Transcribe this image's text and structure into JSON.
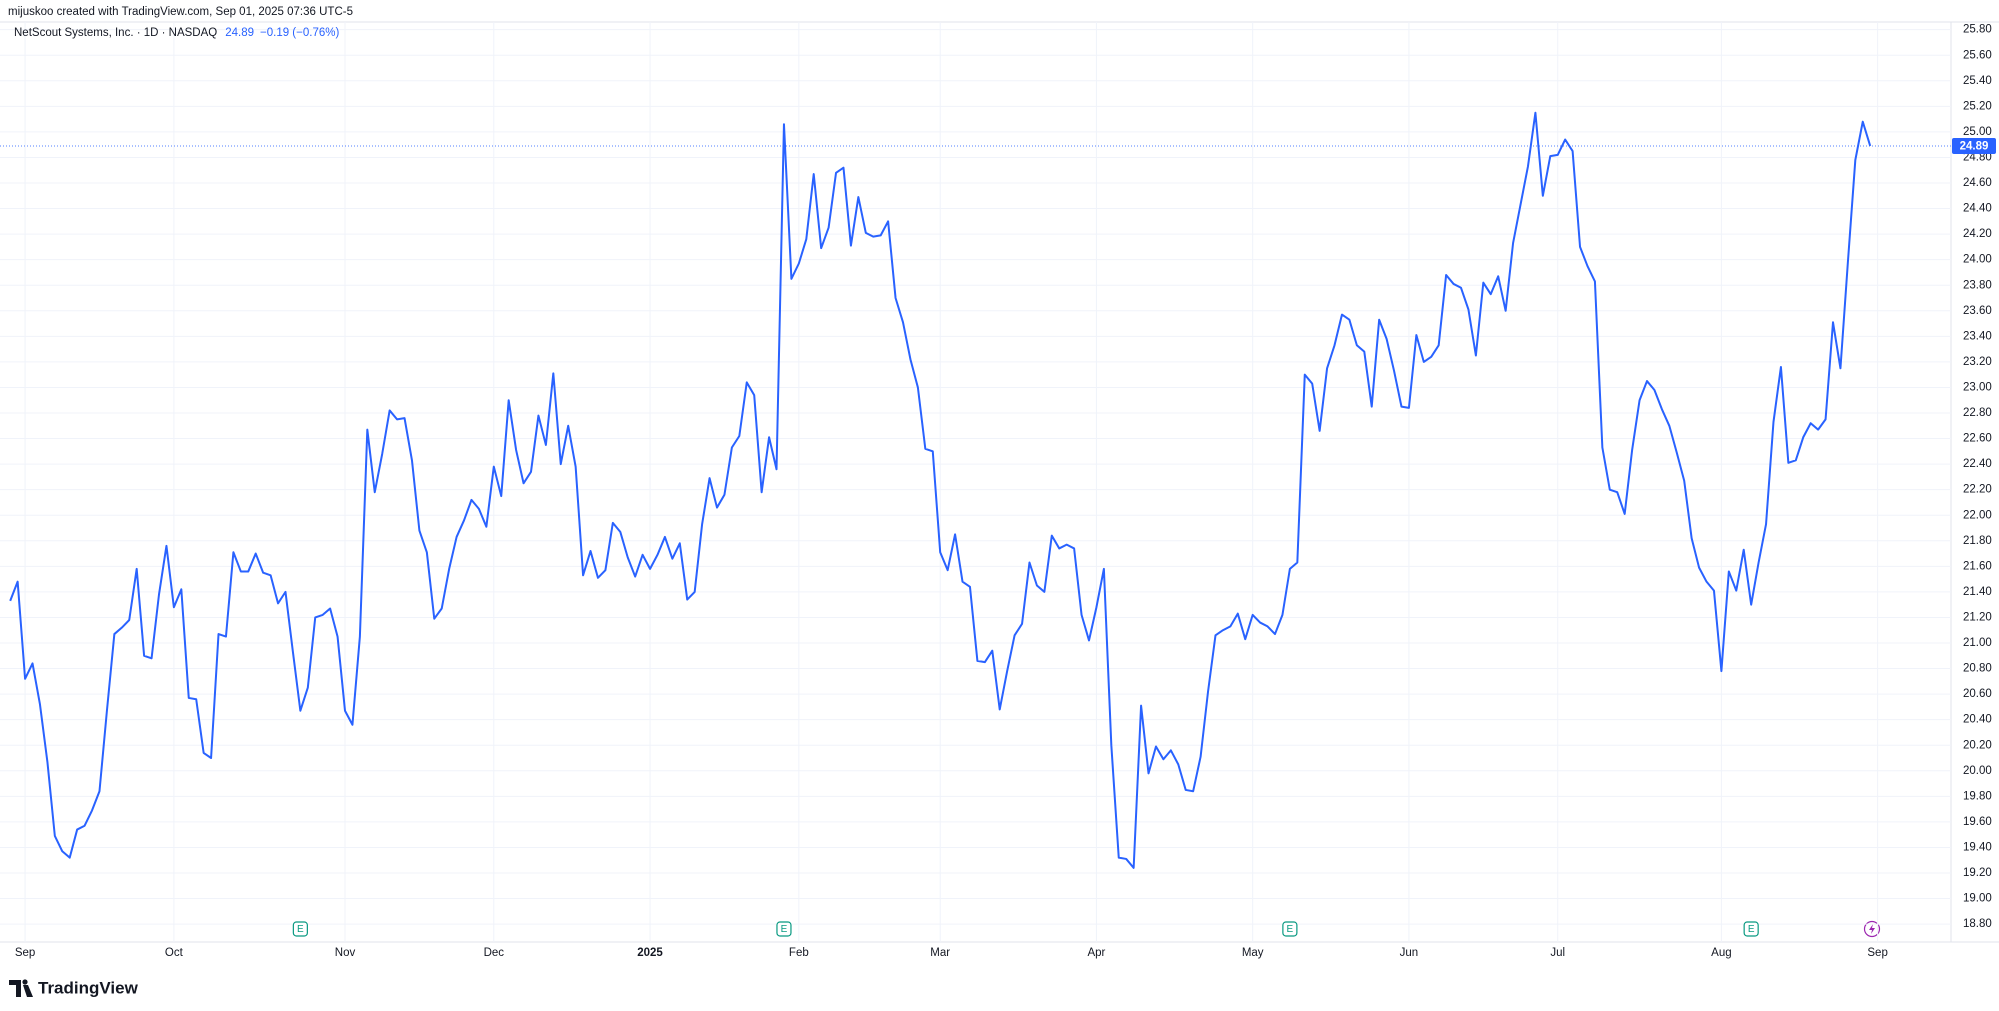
{
  "header": "mijuskoo created with TradingView.com, Sep 01, 2025 07:36 UTC-5",
  "watermark": "TradingView",
  "chart_data": {
    "type": "line",
    "legend_title": "NetScout Systems, Inc. · 1D · NASDAQ",
    "change_label": "−0.19 (−0.76%)",
    "categories": [
      null,
      null,
      "Sep",
      null,
      null,
      null,
      null,
      null,
      null,
      null,
      null,
      null,
      null,
      null,
      null,
      null,
      null,
      null,
      null,
      null,
      null,
      null,
      "Oct",
      null,
      null,
      null,
      null,
      null,
      null,
      null,
      null,
      null,
      null,
      null,
      null,
      null,
      null,
      null,
      null,
      null,
      null,
      null,
      null,
      null,
      null,
      "Nov",
      null,
      null,
      null,
      null,
      null,
      null,
      null,
      null,
      null,
      null,
      null,
      null,
      null,
      null,
      null,
      null,
      null,
      null,
      null,
      "Dec",
      null,
      null,
      null,
      null,
      null,
      null,
      null,
      null,
      null,
      null,
      null,
      null,
      null,
      null,
      null,
      null,
      null,
      null,
      null,
      null,
      "2025",
      null,
      null,
      null,
      null,
      null,
      null,
      null,
      null,
      null,
      null,
      null,
      null,
      null,
      null,
      null,
      null,
      null,
      null,
      null,
      "Feb",
      null,
      null,
      null,
      null,
      null,
      null,
      null,
      null,
      null,
      null,
      null,
      null,
      null,
      null,
      null,
      null,
      null,
      null,
      "Mar",
      null,
      null,
      null,
      null,
      null,
      null,
      null,
      null,
      null,
      null,
      null,
      null,
      null,
      null,
      null,
      null,
      null,
      null,
      null,
      null,
      "Apr",
      null,
      null,
      null,
      null,
      null,
      null,
      null,
      null,
      null,
      null,
      null,
      null,
      null,
      null,
      null,
      null,
      null,
      null,
      null,
      null,
      "May",
      null,
      null,
      null,
      null,
      null,
      null,
      null,
      null,
      null,
      null,
      null,
      null,
      null,
      null,
      null,
      null,
      null,
      null,
      null,
      null,
      "Jun",
      null,
      null,
      null,
      null,
      null,
      null,
      null,
      null,
      null,
      null,
      null,
      null,
      null,
      null,
      null,
      null,
      null,
      null,
      null,
      "Jul",
      null,
      null,
      null,
      null,
      null,
      null,
      null,
      null,
      null,
      null,
      null,
      null,
      null,
      null,
      null,
      null,
      null,
      null,
      null,
      null,
      null,
      "Aug",
      null,
      null,
      null,
      null,
      null,
      null,
      null,
      null,
      null,
      null,
      null,
      null,
      null,
      null,
      null,
      null,
      null,
      null,
      null,
      null,
      "Sep"
    ],
    "series": [
      {
        "name": "NetScout Systems, Inc.",
        "color": "#2962ff",
        "values": [
          21.33,
          21.48,
          20.72,
          20.84,
          20.52,
          20.07,
          19.49,
          19.37,
          19.32,
          19.54,
          19.57,
          19.69,
          19.84,
          20.47,
          21.07,
          21.12,
          21.18,
          21.58,
          20.9,
          20.88,
          21.38,
          21.76,
          21.28,
          21.42,
          20.57,
          20.56,
          20.14,
          20.1,
          21.07,
          21.05,
          21.71,
          21.56,
          21.56,
          21.7,
          21.55,
          21.53,
          21.31,
          21.4,
          20.93,
          20.47,
          20.65,
          21.2,
          21.22,
          21.27,
          21.05,
          20.47,
          20.36,
          21.05,
          22.67,
          22.18,
          22.48,
          22.82,
          22.75,
          22.76,
          22.43,
          21.88,
          21.71,
          21.19,
          21.27,
          21.58,
          21.83,
          21.96,
          22.12,
          22.05,
          21.91,
          22.38,
          22.15,
          22.9,
          22.51,
          22.25,
          22.34,
          22.78,
          22.55,
          23.11,
          22.4,
          22.7,
          22.38,
          21.53,
          21.72,
          21.51,
          21.57,
          21.94,
          21.87,
          21.67,
          21.52,
          21.69,
          21.58,
          21.69,
          21.83,
          21.66,
          21.78,
          21.34,
          21.4,
          21.93,
          22.29,
          22.06,
          22.16,
          22.53,
          22.62,
          23.04,
          22.94,
          22.18,
          22.61,
          22.36,
          25.06,
          23.85,
          23.97,
          24.16,
          24.67,
          24.09,
          24.25,
          24.68,
          24.72,
          24.11,
          24.49,
          24.21,
          24.18,
          24.19,
          24.3,
          23.7,
          23.51,
          23.22,
          23.0,
          22.52,
          22.5,
          21.71,
          21.57,
          21.85,
          21.48,
          21.44,
          20.86,
          20.85,
          20.94,
          20.48,
          20.78,
          21.06,
          21.15,
          21.63,
          21.45,
          21.4,
          21.84,
          21.74,
          21.77,
          21.74,
          21.22,
          21.02,
          21.28,
          21.58,
          20.2,
          19.32,
          19.31,
          19.24,
          20.51,
          19.98,
          20.19,
          20.09,
          20.16,
          20.05,
          19.85,
          19.84,
          20.11,
          20.62,
          21.06,
          21.1,
          21.13,
          21.23,
          21.03,
          21.22,
          21.16,
          21.13,
          21.07,
          21.22,
          21.58,
          21.63,
          23.1,
          23.03,
          22.66,
          23.15,
          23.33,
          23.57,
          23.53,
          23.33,
          23.28,
          22.85,
          23.53,
          23.38,
          23.13,
          22.85,
          22.84,
          23.41,
          23.2,
          23.24,
          23.33,
          23.88,
          23.81,
          23.78,
          23.61,
          23.25,
          23.82,
          23.73,
          23.87,
          23.6,
          24.13,
          24.43,
          24.73,
          25.15,
          24.5,
          24.81,
          24.82,
          24.94,
          24.85,
          24.1,
          23.95,
          23.83,
          22.53,
          22.2,
          22.18,
          22.01,
          22.51,
          22.9,
          23.05,
          22.98,
          22.83,
          22.7,
          22.49,
          22.27,
          21.82,
          21.59,
          21.48,
          21.41,
          20.78,
          21.56,
          21.41,
          21.73,
          21.3,
          21.63,
          21.93,
          22.73,
          23.16,
          22.41,
          22.43,
          22.61,
          22.72,
          22.67,
          22.75,
          23.51,
          23.15,
          23.98,
          24.78,
          25.08,
          24.89,
          null
        ]
      }
    ],
    "ylim": [
      18.66,
      25.86
    ],
    "yticks": [
      {
        "value": 18.8,
        "label": "18.80"
      },
      {
        "value": 19,
        "label": "19.00"
      },
      {
        "value": 19.2,
        "label": "19.20"
      },
      {
        "value": 19.4,
        "label": "19.40"
      },
      {
        "value": 19.6,
        "label": "19.60"
      },
      {
        "value": 19.8,
        "label": "19.80"
      },
      {
        "value": 20,
        "label": "20.00"
      },
      {
        "value": 20.2,
        "label": "20.20"
      },
      {
        "value": 20.4,
        "label": "20.40"
      },
      {
        "value": 20.6,
        "label": "20.60"
      },
      {
        "value": 20.8,
        "label": "20.80"
      },
      {
        "value": 21,
        "label": "21.00"
      },
      {
        "value": 21.2,
        "label": "21.20"
      },
      {
        "value": 21.4,
        "label": "21.40"
      },
      {
        "value": 21.6,
        "label": "21.60"
      },
      {
        "value": 21.8,
        "label": "21.80"
      },
      {
        "value": 22,
        "label": "22.00"
      },
      {
        "value": 22.2,
        "label": "22.20"
      },
      {
        "value": 22.4,
        "label": "22.40"
      },
      {
        "value": 22.6,
        "label": "22.60"
      },
      {
        "value": 22.8,
        "label": "22.80"
      },
      {
        "value": 23,
        "label": "23.00"
      },
      {
        "value": 23.2,
        "label": "23.20"
      },
      {
        "value": 23.4,
        "label": "23.40"
      },
      {
        "value": 23.6,
        "label": "23.60"
      },
      {
        "value": 23.8,
        "label": "23.80"
      },
      {
        "value": 24,
        "label": "24.00"
      },
      {
        "value": 24.2,
        "label": "24.20"
      },
      {
        "value": 24.4,
        "label": "24.40"
      },
      {
        "value": 24.6,
        "label": "24.60"
      },
      {
        "value": 24.8,
        "label": "24.80"
      },
      {
        "value": 25,
        "label": "25.00"
      },
      {
        "value": 25.2,
        "label": "25.20"
      },
      {
        "value": 25.4,
        "label": "25.40"
      },
      {
        "value": 25.6,
        "label": "25.60"
      },
      {
        "value": 25.8,
        "label": "25.80"
      }
    ],
    "grid": true,
    "events": [
      {
        "label": "E",
        "index": 39
      },
      {
        "label": "E",
        "index": 104
      },
      {
        "label": "E",
        "index": 172
      },
      {
        "label": "E",
        "index": 234
      }
    ]
  }
}
